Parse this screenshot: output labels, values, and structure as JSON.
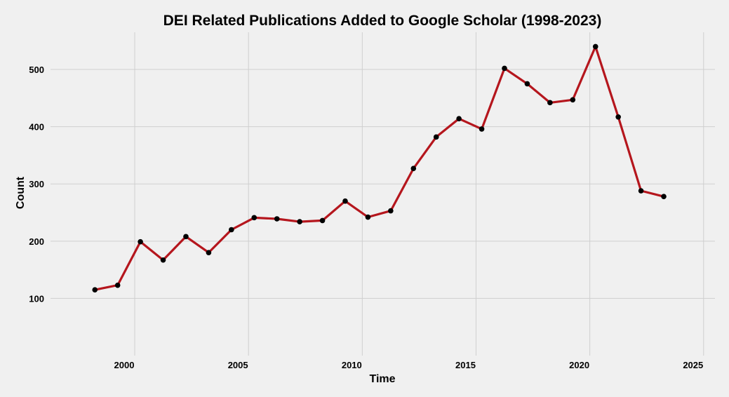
{
  "chart_data": {
    "type": "line",
    "title": "DEI Related Publications Added to Google Scholar (1998-2023)",
    "xlabel": "Time",
    "ylabel": "Count",
    "xlim": [
      1996.3,
      2025.5
    ],
    "ylim": [
      0,
      565
    ],
    "x_ticks": [
      2000,
      2005,
      2010,
      2015,
      2020,
      2025
    ],
    "y_ticks": [
      100,
      200,
      300,
      400,
      500
    ],
    "x": [
      1998,
      1999,
      2000,
      2001,
      2002,
      2003,
      2004,
      2005,
      2006,
      2007,
      2008,
      2009,
      2010,
      2011,
      2012,
      2013,
      2014,
      2015,
      2016,
      2017,
      2018,
      2019,
      2020,
      2021,
      2022,
      2023
    ],
    "series": [
      {
        "values": [
          115,
          123,
          199,
          167,
          208,
          180,
          220,
          241,
          239,
          234,
          236,
          270,
          242,
          253,
          327,
          382,
          414,
          396,
          502,
          475,
          442,
          447,
          540,
          417,
          288,
          278
        ]
      }
    ],
    "grid": true,
    "colors": {
      "background": "#f0f0f0",
      "grid": "#cfcfcf",
      "line": "#b5161d",
      "points": "#000000"
    }
  }
}
